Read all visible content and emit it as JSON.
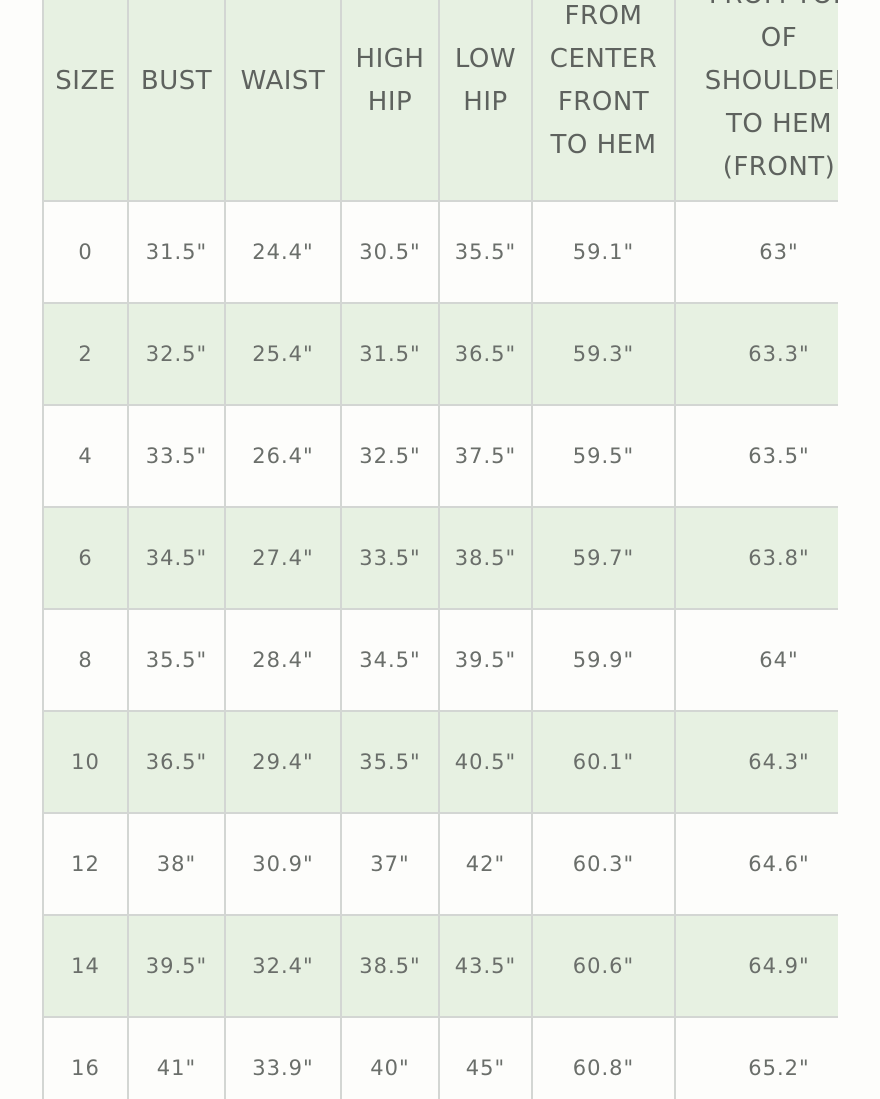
{
  "table": {
    "headers": [
      [
        "SIZE"
      ],
      [
        "BUST"
      ],
      [
        "WAIST"
      ],
      [
        "HIGH",
        "HIP"
      ],
      [
        "LOW",
        "HIP"
      ],
      [
        "FROM",
        "CENTER",
        "FRONT",
        "TO HEM"
      ],
      [
        "FROM TOP",
        "OF",
        "SHOULDER",
        "TO HEM",
        "(FRONT)"
      ]
    ],
    "rows": [
      [
        "0",
        "31.5\"",
        "24.4\"",
        "30.5\"",
        "35.5\"",
        "59.1\"",
        "63\""
      ],
      [
        "2",
        "32.5\"",
        "25.4\"",
        "31.5\"",
        "36.5\"",
        "59.3\"",
        "63.3\""
      ],
      [
        "4",
        "33.5\"",
        "26.4\"",
        "32.5\"",
        "37.5\"",
        "59.5\"",
        "63.5\""
      ],
      [
        "6",
        "34.5\"",
        "27.4\"",
        "33.5\"",
        "38.5\"",
        "59.7\"",
        "63.8\""
      ],
      [
        "8",
        "35.5\"",
        "28.4\"",
        "34.5\"",
        "39.5\"",
        "59.9\"",
        "64\""
      ],
      [
        "10",
        "36.5\"",
        "29.4\"",
        "35.5\"",
        "40.5\"",
        "60.1\"",
        "64.3\""
      ],
      [
        "12",
        "38\"",
        "30.9\"",
        "37\"",
        "42\"",
        "60.3\"",
        "64.6\""
      ],
      [
        "14",
        "39.5\"",
        "32.4\"",
        "38.5\"",
        "43.5\"",
        "60.6\"",
        "64.9\""
      ],
      [
        "16",
        "41\"",
        "33.9\"",
        "40\"",
        "45\"",
        "60.8\"",
        "65.2\""
      ]
    ]
  },
  "colors": {
    "header_bg": "#e7f1e2",
    "alt_row_bg": "#e7f1e2",
    "border": "#d3d6d3",
    "text": "#6a6e6a"
  }
}
